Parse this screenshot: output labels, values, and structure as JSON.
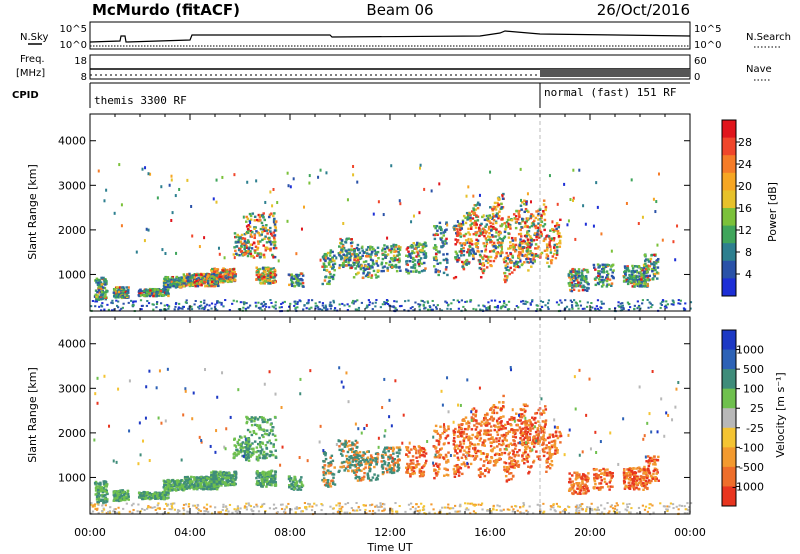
{
  "header": {
    "station": "McMurdo (fitACF)",
    "beam": "Beam 06",
    "date": "26/Oct/2016"
  },
  "top_panels": {
    "nsky_label": "N.Sky",
    "nsearch_label": "N.Search",
    "nsky_ticks": [
      "10^5",
      "10^0"
    ],
    "nsearch_ticks": [
      "10^5",
      "10^0"
    ],
    "freq_label": "Freq.",
    "freq_unit": "[MHz]",
    "freq_ticks": [
      "18",
      "8"
    ],
    "nave_label": "Nave",
    "nave_ticks": [
      "60",
      "0"
    ],
    "cpid_label": "CPID",
    "modes": [
      {
        "label": "themis 3300 RF",
        "start_hour": 0.0
      },
      {
        "label": "normal (fast) 151 RF",
        "start_hour": 18.0
      }
    ]
  },
  "chart_data": [
    {
      "type": "heatmap",
      "name": "power-panel",
      "ylabel": "Slant Range [km]",
      "xlabel": "",
      "ylim": [
        180,
        4600
      ],
      "xlim": [
        0,
        24
      ],
      "yticks": [
        "1000",
        "2000",
        "3000",
        "4000"
      ],
      "colorbar": {
        "label": "Power [dB]",
        "ticks": [
          "28",
          "24",
          "20",
          "16",
          "12",
          "8",
          "4"
        ],
        "colors": [
          "#e0151c",
          "#f0462b",
          "#f57c28",
          "#f6a623",
          "#e6c12a",
          "#7bc13a",
          "#3fa55b",
          "#2d7f8f",
          "#2a52a8",
          "#1d2fd6"
        ]
      }
    },
    {
      "type": "heatmap",
      "name": "velocity-panel",
      "ylabel": "Slant Range [km]",
      "xlabel": "Time UT",
      "ylim": [
        180,
        4600
      ],
      "xlim": [
        0,
        24
      ],
      "yticks": [
        "1000",
        "2000",
        "3000",
        "4000"
      ],
      "xticks": [
        "00:00",
        "04:00",
        "08:00",
        "12:00",
        "16:00",
        "20:00",
        "00:00"
      ],
      "colorbar": {
        "label": "Velocity [m s⁻¹]",
        "ticks": [
          "1000",
          "500",
          "100",
          "25",
          "-25",
          "-100",
          "-500",
          "-1000"
        ],
        "colors": [
          "#1d39c4",
          "#2d62b6",
          "#3f8c7a",
          "#6fc04e",
          "#b8b8b8",
          "#f4c433",
          "#f39a2f",
          "#ee6e2b",
          "#e8351f"
        ]
      }
    }
  ]
}
